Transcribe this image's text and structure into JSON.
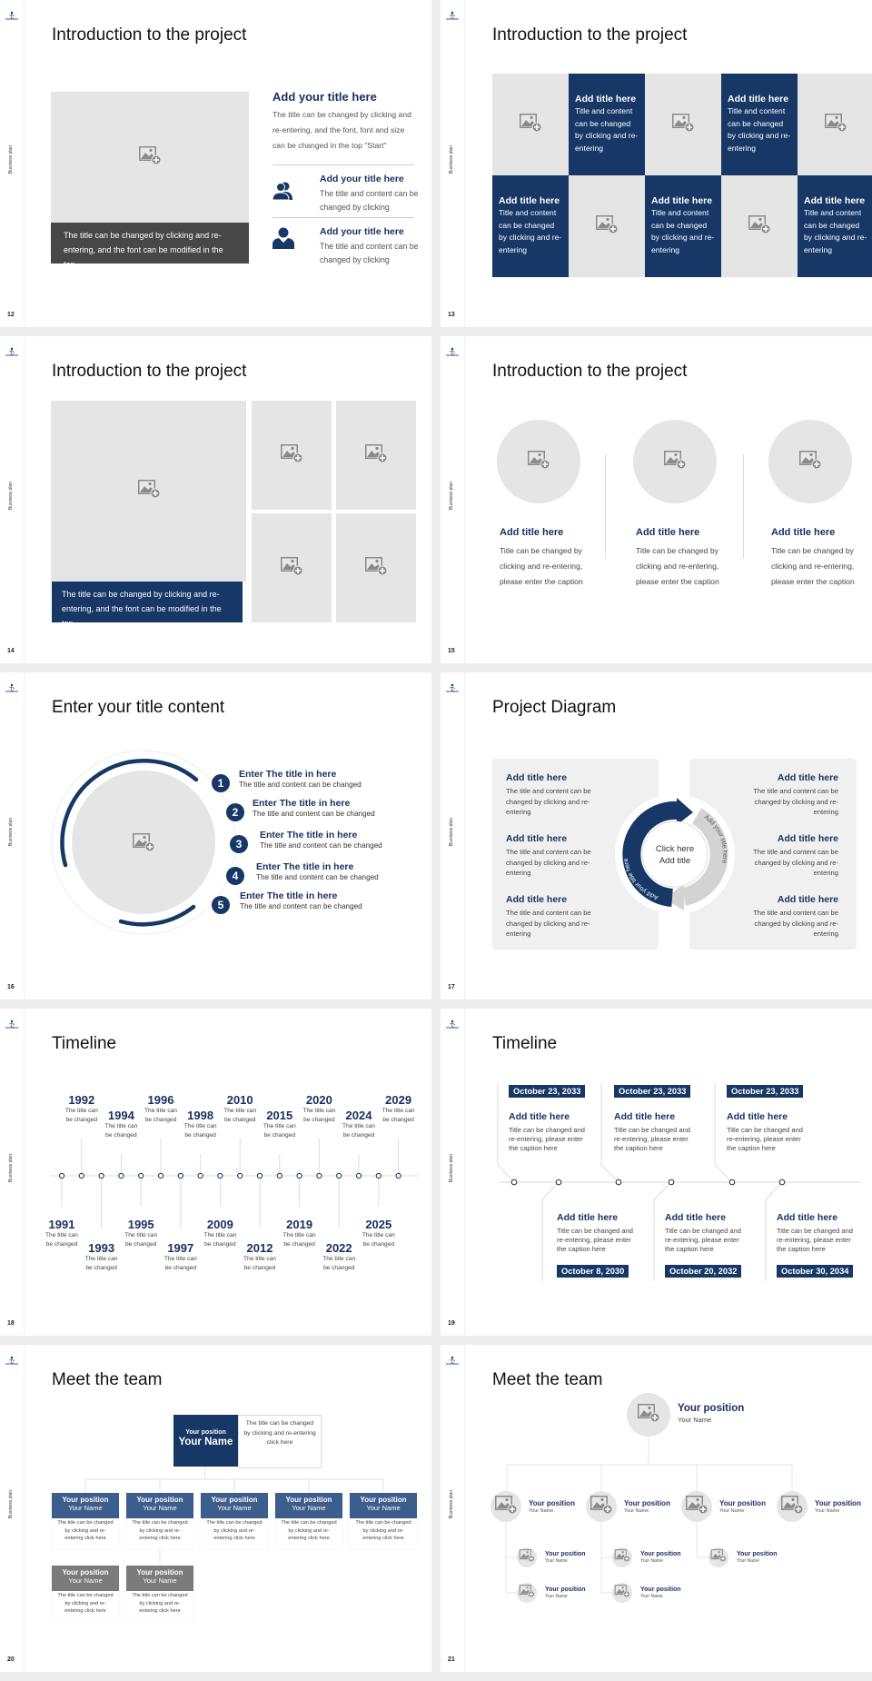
{
  "common": {
    "side_label": "Business plan",
    "accent": "#173766",
    "placeholder_bg": "#e6e5e5"
  },
  "slides": {
    "s12": {
      "page": "12",
      "title": "Introduction to the project",
      "image_caption": "The title can be changed by clicking and re-entering, and the font can be modified in the top",
      "main_title": "Add your title here",
      "main_body": "The title can be changed by clicking and re-entering, and the font, font and size can be changed in the top \"Start\"",
      "items": [
        {
          "icon": "users-icon",
          "title": "Add your title here",
          "body": "The title and content can be changed by clicking"
        },
        {
          "icon": "user-icon",
          "title": "Add your title here",
          "body": "The title and content can be changed by clicking"
        }
      ]
    },
    "s13": {
      "page": "13",
      "title": "Introduction to the project",
      "cells": [
        {
          "type": "image"
        },
        {
          "type": "text",
          "title": "Add title here",
          "body": "Title and content can be changed by clicking and re-entering"
        },
        {
          "type": "image"
        },
        {
          "type": "text",
          "title": "Add title here",
          "body": "Title and content can be changed by clicking and re-entering"
        },
        {
          "type": "image"
        },
        {
          "type": "text",
          "title": "Add title here",
          "body": "Title and content can be changed by clicking and re-entering"
        },
        {
          "type": "image"
        },
        {
          "type": "text",
          "title": "Add title here",
          "body": "Title and content can be changed by clicking and re-entering"
        },
        {
          "type": "image"
        },
        {
          "type": "text",
          "title": "Add title here",
          "body": "Title and content can be changed by clicking and re-entering"
        }
      ]
    },
    "s14": {
      "page": "14",
      "title": "Introduction to the project",
      "caption": "The title can be changed by clicking and re-entering, and the font can be modified in the top"
    },
    "s15": {
      "page": "15",
      "title": "Introduction to the project",
      "items": [
        {
          "title": "Add title here",
          "body": "Title can be changed by clicking and re-entering, please enter the caption"
        },
        {
          "title": "Add title here",
          "body": "Title can be changed by clicking and re-entering, please enter the caption"
        },
        {
          "title": "Add title here",
          "body": "Title can be changed by clicking and re-entering, please enter the caption"
        }
      ]
    },
    "s16": {
      "page": "16",
      "title": "Enter your title content",
      "items": [
        {
          "num": "1",
          "title": "Enter The title in here",
          "body": "The title and content can be changed"
        },
        {
          "num": "2",
          "title": "Enter The title in here",
          "body": "The title and content can be changed"
        },
        {
          "num": "3",
          "title": "Enter The title in here",
          "body": "The title and content can be changed"
        },
        {
          "num": "4",
          "title": "Enter The title in here",
          "body": "The title and content can be changed"
        },
        {
          "num": "5",
          "title": "Enter The title in here",
          "body": "The title and content can be changed"
        }
      ]
    },
    "s17": {
      "page": "17",
      "title": "Project Diagram",
      "center": [
        "Click here",
        "Add title"
      ],
      "arc_left": "Add your title here",
      "arc_right": "Add your title here",
      "left": [
        {
          "title": "Add title here",
          "body": "The title and content can be changed by clicking and re-entering"
        },
        {
          "title": "Add title here",
          "body": "The title and content can be changed by clicking and re-entering"
        },
        {
          "title": "Add title here",
          "body": "The title and content can be changed by clicking and re-entering"
        }
      ],
      "right": [
        {
          "title": "Add title here",
          "body": "The title and content can be changed by clicking and re-entering"
        },
        {
          "title": "Add title here",
          "body": "The title and content can be changed by clicking and re-entering"
        },
        {
          "title": "Add title here",
          "body": "The title and content can be changed by clicking and re-entering"
        }
      ]
    },
    "s18": {
      "page": "18",
      "title": "Timeline",
      "events": [
        {
          "year": "1991",
          "text": "The title can be changed"
        },
        {
          "year": "1992",
          "text": "The title can be changed"
        },
        {
          "year": "1993",
          "text": "The title can be changed"
        },
        {
          "year": "1994",
          "text": "The title can be changed"
        },
        {
          "year": "1995",
          "text": "The title can be changed"
        },
        {
          "year": "1996",
          "text": "The title can be changed"
        },
        {
          "year": "1997",
          "text": "The title can be changed"
        },
        {
          "year": "1998",
          "text": "The title can be changed"
        },
        {
          "year": "2009",
          "text": "The title can be changed"
        },
        {
          "year": "2010",
          "text": "The title can be changed"
        },
        {
          "year": "2012",
          "text": "The title can be changed"
        },
        {
          "year": "2015",
          "text": "The title can be changed"
        },
        {
          "year": "2019",
          "text": "The title can be changed"
        },
        {
          "year": "2020",
          "text": "The title can be changed"
        },
        {
          "year": "2022",
          "text": "The title can be changed"
        },
        {
          "year": "2024",
          "text": "The title can be changed"
        },
        {
          "year": "2025",
          "text": "The title can be changed"
        },
        {
          "year": "2029",
          "text": "The title can be changed"
        }
      ]
    },
    "s19": {
      "page": "19",
      "title": "Timeline",
      "top": [
        {
          "date": "October 23, 2033",
          "title": "Add title here",
          "body": "Title can be changed and re-entering, please enter the caption here"
        },
        {
          "date": "October 23, 2033",
          "title": "Add title here",
          "body": "Title can be changed and re-entering, please enter the caption here"
        },
        {
          "date": "October 23, 2033",
          "title": "Add title here",
          "body": "Title can be changed and re-entering, please enter the caption here"
        }
      ],
      "bottom": [
        {
          "date": "October 8, 2030",
          "title": "Add title here",
          "body": "Title can be changed and re-entering, please enter the caption here"
        },
        {
          "date": "October 20, 2032",
          "title": "Add title here",
          "body": "Title can be changed and re-entering, please enter the caption here"
        },
        {
          "date": "October 30, 2034",
          "title": "Add title here",
          "body": "Title can be changed and re-entering, please enter the caption here"
        }
      ]
    },
    "s20": {
      "page": "20",
      "title": "Meet the team",
      "lead": {
        "position": "Your position",
        "name": "Your Name",
        "description": "The title can be changed by clicking and re-entering click here"
      },
      "members": [
        {
          "position": "Your position",
          "name": "Your Name",
          "description": "The title can be changed by clicking and re-entering click here"
        },
        {
          "position": "Your position",
          "name": "Your Name",
          "description": "The title can be changed by clicking and re-entering click here"
        },
        {
          "position": "Your position",
          "name": "Your Name",
          "description": "The title can be changed by clicking and re-entering click here"
        },
        {
          "position": "Your position",
          "name": "Your Name",
          "description": "The title can be changed by clicking and re-entering click here"
        },
        {
          "position": "Your position",
          "name": "Your Name",
          "description": "The title can be changed by clicking and re-entering click here"
        },
        {
          "position": "Your position",
          "name": "Your Name",
          "description": "The title can be changed by clicking and re-entering click here"
        },
        {
          "position": "Your position",
          "name": "Your Name",
          "description": "The title can be changed by clicking and re-entering click here"
        }
      ]
    },
    "s21": {
      "page": "21",
      "title": "Meet the team",
      "lead": {
        "position": "Your position",
        "name": "Your Name"
      },
      "level2": [
        {
          "position": "Your position",
          "name": "Your Name"
        },
        {
          "position": "Your position",
          "name": "Your Name"
        },
        {
          "position": "Your position",
          "name": "Your Name"
        },
        {
          "position": "Your position",
          "name": "Your Name"
        }
      ],
      "level3": [
        {
          "position": "Your position",
          "name": "Your Name"
        },
        {
          "position": "Your position",
          "name": "Your Name"
        },
        {
          "position": "Your position",
          "name": "Your Name"
        },
        {
          "position": "Your position",
          "name": "Your Name"
        },
        {
          "position": "Your position",
          "name": "Your Name"
        }
      ]
    }
  }
}
